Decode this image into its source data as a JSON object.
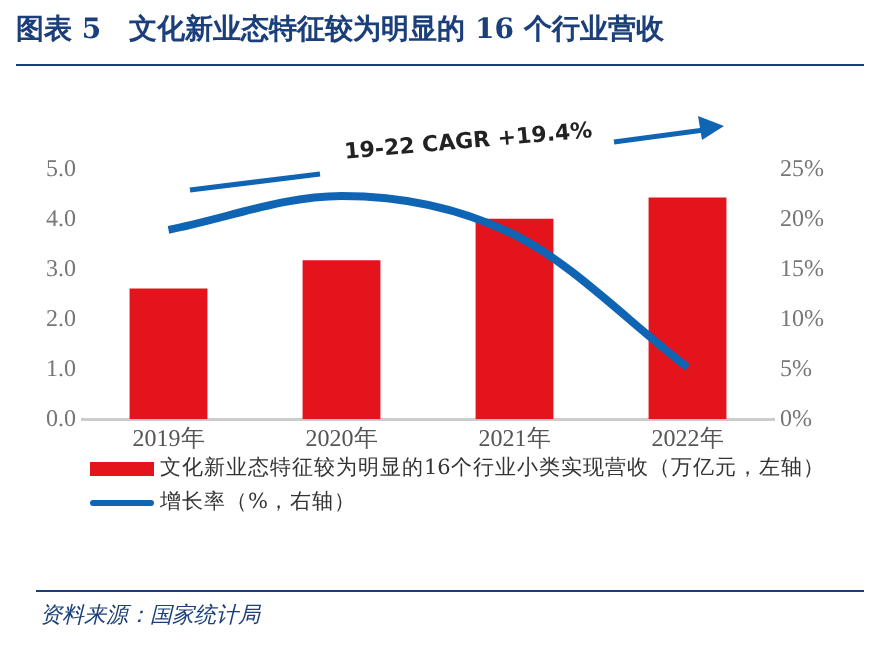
{
  "chart_data": {
    "type": "bar",
    "title": "图表 5　文化新业态特征较为明显的 16 个行业营收",
    "categories": [
      "2019年",
      "2020年",
      "2021年",
      "2022年"
    ],
    "series": [
      {
        "name": "文化新业态特征较为明显的16个行业小类实现营收（万亿元，左轴）",
        "color": "#e3141c",
        "values": [
          2.62,
          3.19,
          4.02,
          4.45
        ]
      },
      {
        "name": "增长率（%，右轴）",
        "type": "line",
        "axis": "y2",
        "color": "#0f64b4",
        "values": [
          19.0,
          22.4,
          18.5,
          5.2
        ]
      }
    ],
    "ylim": [
      0,
      5
    ],
    "yticks": [
      {
        "value": 0,
        "label": "0.0"
      },
      {
        "value": 1,
        "label": "1.0"
      },
      {
        "value": 2,
        "label": "2.0"
      },
      {
        "value": 3,
        "label": "3.0"
      },
      {
        "value": 4,
        "label": "4.0"
      },
      {
        "value": 5,
        "label": "5.0"
      }
    ],
    "y2lim": [
      0,
      25
    ],
    "y2ticks": [
      {
        "value": 0,
        "label": "0%"
      },
      {
        "value": 5,
        "label": "5%"
      },
      {
        "value": 10,
        "label": "10%"
      },
      {
        "value": 15,
        "label": "15%"
      },
      {
        "value": 20,
        "label": "20%"
      },
      {
        "value": 25,
        "label": "25%"
      }
    ],
    "grid": false,
    "legend": "bottom",
    "marker": "none",
    "annotations": [
      "19-22 CAGR +19.4%",
      "资料来源：国家统计局"
    ]
  }
}
